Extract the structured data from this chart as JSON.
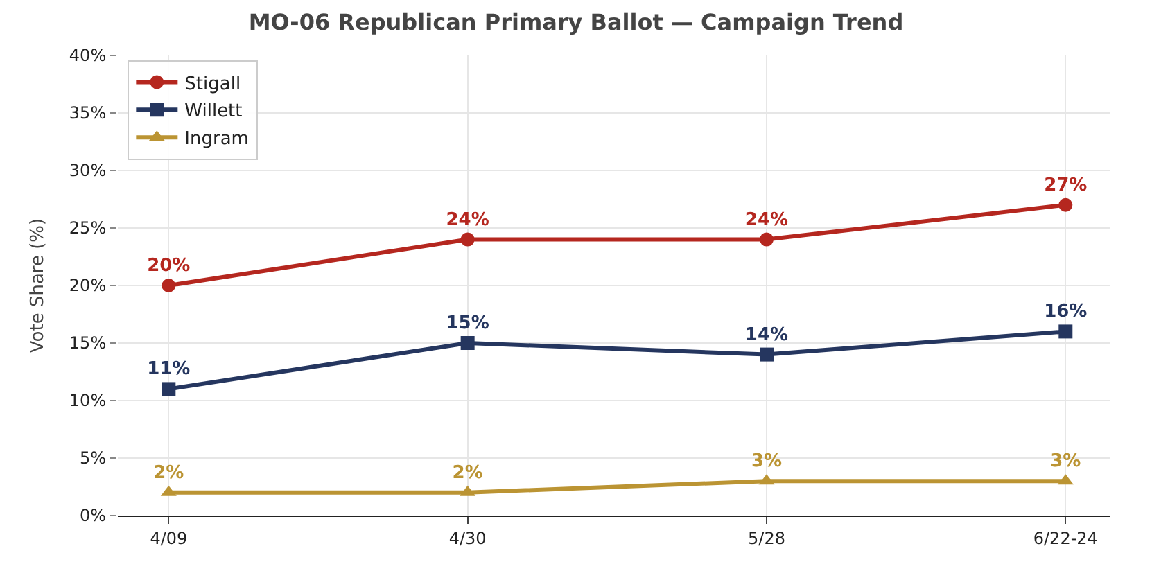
{
  "chart_data": {
    "type": "line",
    "title": "MO-06 Republican Primary Ballot — Campaign Trend",
    "ylabel": "Vote Share (%)",
    "categories": [
      "4/09",
      "4/30",
      "5/28",
      "6/22-24"
    ],
    "series": [
      {
        "name": "Stigall",
        "color": "#b5271f",
        "marker": "circle",
        "values": [
          20,
          24,
          24,
          27
        ],
        "value_labels": [
          "20%",
          "24%",
          "24%",
          "27%"
        ]
      },
      {
        "name": "Willett",
        "color": "#25365f",
        "marker": "square",
        "values": [
          11,
          15,
          14,
          16
        ],
        "value_labels": [
          "11%",
          "15%",
          "14%",
          "16%"
        ]
      },
      {
        "name": "Ingram",
        "color": "#bb9433",
        "marker": "triangle",
        "values": [
          2,
          2,
          3,
          3
        ],
        "value_labels": [
          "2%",
          "2%",
          "3%",
          "3%"
        ]
      }
    ],
    "ylim": [
      0,
      40
    ],
    "yticks": [
      {
        "value": 0,
        "label": "0%"
      },
      {
        "value": 5,
        "label": "5%"
      },
      {
        "value": 10,
        "label": "10%"
      },
      {
        "value": 15,
        "label": "15%"
      },
      {
        "value": 20,
        "label": "20%"
      },
      {
        "value": 25,
        "label": "25%"
      },
      {
        "value": 30,
        "label": "30%"
      },
      {
        "value": 35,
        "label": "35%"
      },
      {
        "value": 40,
        "label": "40%"
      }
    ],
    "grid": true,
    "legend": "top left",
    "line_style": "solid"
  }
}
